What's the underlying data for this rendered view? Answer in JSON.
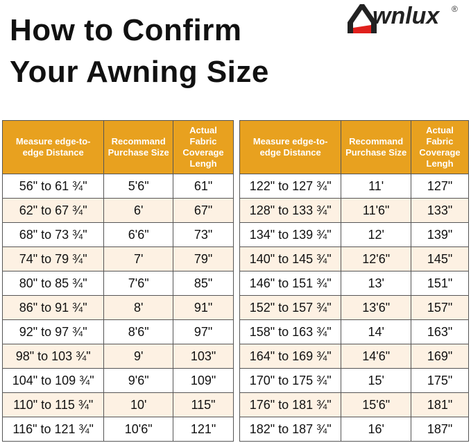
{
  "title_line1": "How to Confirm",
  "title_line2": "Your Awning Size",
  "logo": {
    "text": "Awnlux",
    "registered": "®"
  },
  "headers": [
    "Measure edge-to-edge Distance",
    "Recommand Purchase Size",
    "Actual Fabric Coverage Lengh"
  ],
  "colors": {
    "header": "#E8A11F",
    "alt_row": "#FDF1E3",
    "logo_red": "#E0201C"
  },
  "table_left": [
    [
      "56\" to 61 ¾\"",
      "5'6\"",
      "61\""
    ],
    [
      "62\" to 67 ¾\"",
      "6'",
      "67\""
    ],
    [
      "68\" to 73 ¾\"",
      "6'6\"",
      "73\""
    ],
    [
      "74\" to 79 ¾\"",
      "7'",
      "79\""
    ],
    [
      "80\" to 85 ¾\"",
      "7'6\"",
      "85\""
    ],
    [
      "86\" to 91 ¾\"",
      "8'",
      "91\""
    ],
    [
      "92\" to 97 ¾\"",
      "8'6\"",
      "97\""
    ],
    [
      "98\" to 103 ¾\"",
      "9'",
      "103\""
    ],
    [
      "104\" to 109 ¾\"",
      "9'6\"",
      "109\""
    ],
    [
      "110\" to 115 ¾\"",
      "10'",
      "115\""
    ],
    [
      "116\" to 121 ¾\"",
      "10'6\"",
      "121\""
    ]
  ],
  "table_right": [
    [
      "122\" to 127 ¾\"",
      "11'",
      "127\""
    ],
    [
      "128\" to 133 ¾\"",
      "11'6\"",
      "133\""
    ],
    [
      "134\" to 139 ¾\"",
      "12'",
      "139\""
    ],
    [
      "140\" to 145 ¾\"",
      "12'6\"",
      "145\""
    ],
    [
      "146\" to 151 ¾\"",
      "13'",
      "151\""
    ],
    [
      "152\" to 157 ¾\"",
      "13'6\"",
      "157\""
    ],
    [
      "158\" to 163 ¾\"",
      "14'",
      "163\""
    ],
    [
      "164\" to 169 ¾\"",
      "14'6\"",
      "169\""
    ],
    [
      "170\" to 175 ¾\"",
      "15'",
      "175\""
    ],
    [
      "176\" to 181 ¾\"",
      "15'6\"",
      "181\""
    ],
    [
      "182\" to 187 ¾\"",
      "16'",
      "187\""
    ]
  ]
}
